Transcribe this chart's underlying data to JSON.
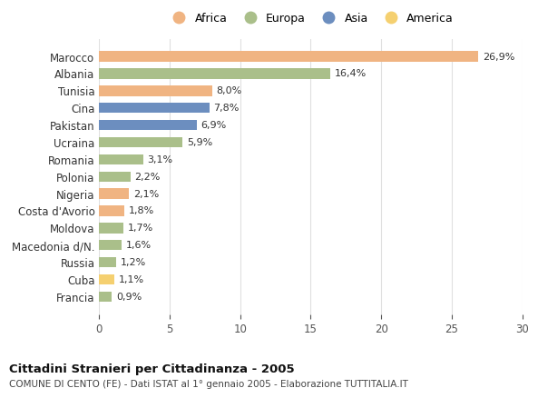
{
  "countries": [
    "Marocco",
    "Albania",
    "Tunisia",
    "Cina",
    "Pakistan",
    "Ucraina",
    "Romania",
    "Polonia",
    "Nigeria",
    "Costa d'Avorio",
    "Moldova",
    "Macedonia d/N.",
    "Russia",
    "Cuba",
    "Francia"
  ],
  "values": [
    26.9,
    16.4,
    8.0,
    7.8,
    6.9,
    5.9,
    3.1,
    2.2,
    2.1,
    1.8,
    1.7,
    1.6,
    1.2,
    1.1,
    0.9
  ],
  "labels": [
    "26,9%",
    "16,4%",
    "8,0%",
    "7,8%",
    "6,9%",
    "5,9%",
    "3,1%",
    "2,2%",
    "2,1%",
    "1,8%",
    "1,7%",
    "1,6%",
    "1,2%",
    "1,1%",
    "0,9%"
  ],
  "continents": [
    "Africa",
    "Europa",
    "Africa",
    "Asia",
    "Asia",
    "Europa",
    "Europa",
    "Europa",
    "Africa",
    "Africa",
    "Europa",
    "Europa",
    "Europa",
    "America",
    "Europa"
  ],
  "colors": {
    "Africa": "#F0B482",
    "Europa": "#AABF8A",
    "Asia": "#6C8EBF",
    "America": "#F5D070"
  },
  "legend_order": [
    "Africa",
    "Europa",
    "Asia",
    "America"
  ],
  "title": "Cittadini Stranieri per Cittadinanza - 2005",
  "subtitle": "COMUNE DI CENTO (FE) - Dati ISTAT al 1° gennaio 2005 - Elaborazione TUTTITALIA.IT",
  "xlim": [
    0,
    30
  ],
  "xticks": [
    0,
    5,
    10,
    15,
    20,
    25,
    30
  ],
  "background_color": "#FFFFFF",
  "grid_color": "#E0E0E0",
  "bar_height": 0.6
}
